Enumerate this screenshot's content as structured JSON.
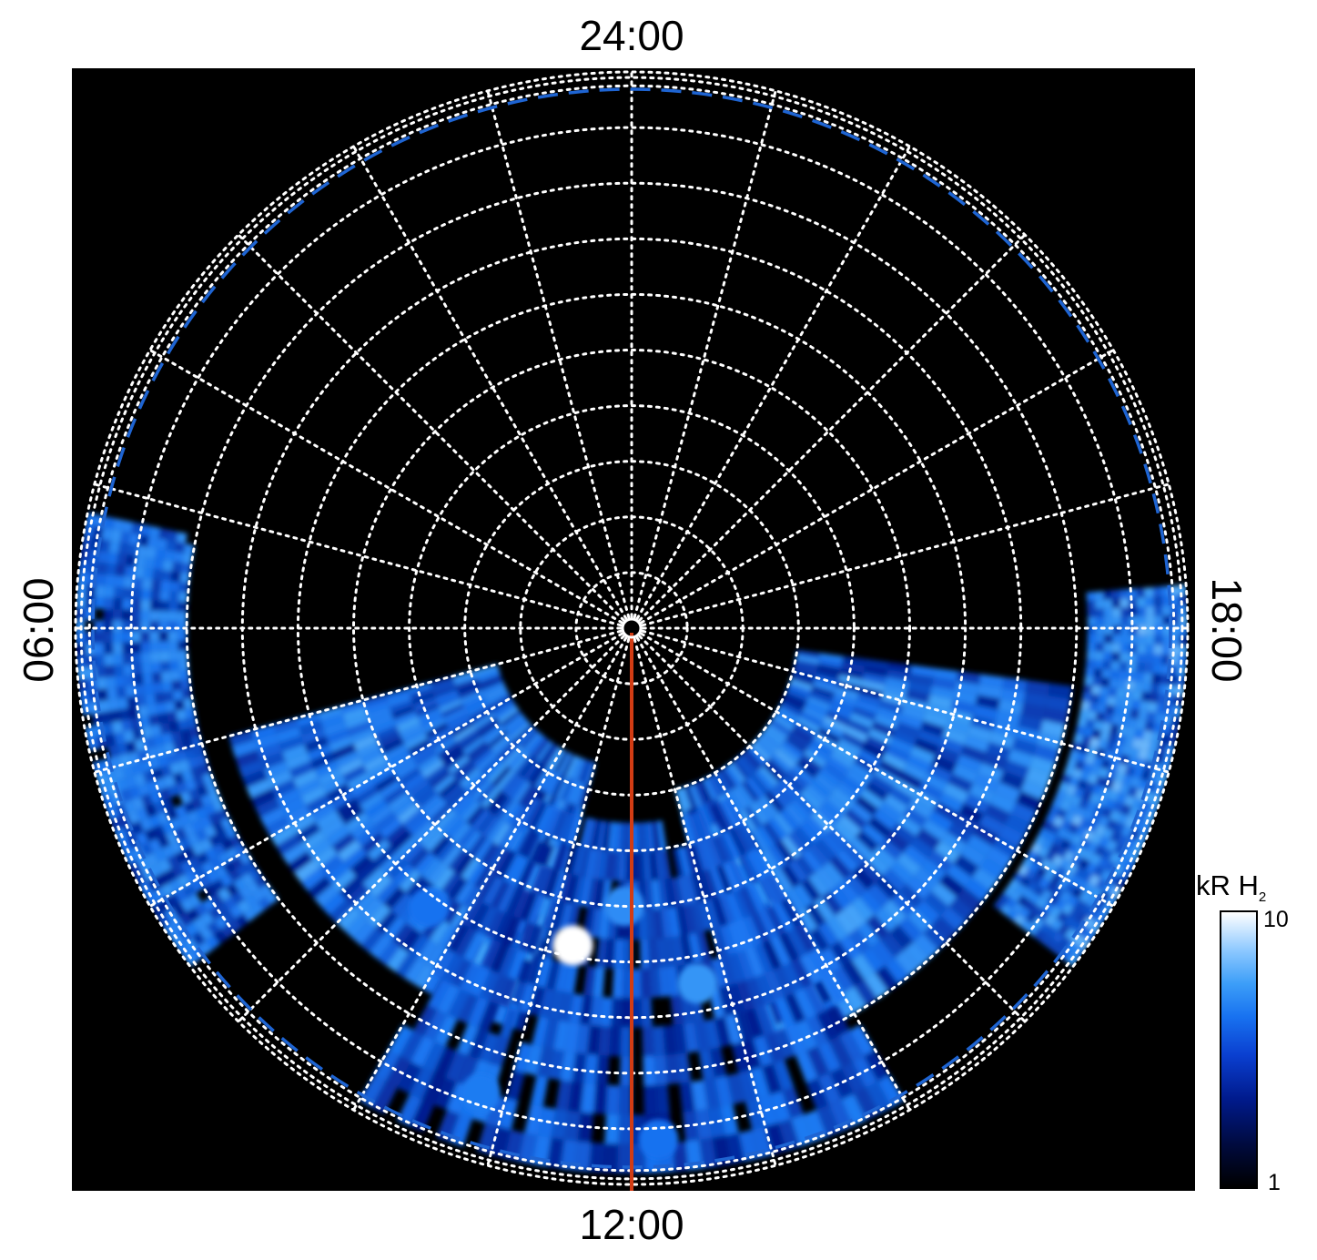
{
  "chart_data": {
    "type": "heatmap",
    "projection": "polar",
    "title": "",
    "local_time_labels": {
      "top": "24:00",
      "bottom": "12:00",
      "left": "06:00",
      "right": "18:00"
    },
    "colorbar": {
      "label": "kR H",
      "label_subscript": "2",
      "min_label": "1",
      "max_label": "10",
      "range": [
        1,
        10
      ],
      "scale": "log",
      "colors": [
        "#000000",
        "#001a8c",
        "#1872f0",
        "#8cc8ff",
        "#ffffff"
      ]
    },
    "grid": {
      "meridian_spacing_hours": 1,
      "latitude_circles": 10,
      "style": "dotted",
      "color": "#ffffff"
    },
    "reference_oval": {
      "style": "dashed",
      "color": "#1e64d2"
    },
    "meridian_line": {
      "local_time": "12:00",
      "color": "#d23c14"
    },
    "emission_regions": [
      {
        "id": "dawn-band",
        "lt_start": 5.2,
        "lt_end": 8.5,
        "r_inner": 0.8,
        "r_outer": 1.0,
        "brightness": 0.7
      },
      {
        "id": "prenoon-band",
        "lt_start": 7.0,
        "lt_end": 11.0,
        "r_inner": 0.25,
        "r_outer": 0.75,
        "brightness": 0.75
      },
      {
        "id": "afternoon-band",
        "lt_start": 13.0,
        "lt_end": 17.5,
        "r_inner": 0.3,
        "r_outer": 0.8,
        "brightness": 0.75
      },
      {
        "id": "dusk-band",
        "lt_start": 15.5,
        "lt_end": 18.3,
        "r_inner": 0.82,
        "r_outer": 1.0,
        "brightness": 0.8
      },
      {
        "id": "noon-patches",
        "lt_start": 10.0,
        "lt_end": 14.0,
        "r_inner": 0.35,
        "r_outer": 0.98,
        "brightness": 0.55
      }
    ],
    "bright_spots": [
      {
        "lt": 11.3,
        "r": 0.58,
        "brightness": 1.0
      },
      {
        "lt": 11.9,
        "r": 0.5,
        "brightness": 0.7
      },
      {
        "lt": 12.7,
        "r": 0.65,
        "brightness": 0.75
      },
      {
        "lt": 9.6,
        "r": 0.62,
        "brightness": 0.55
      },
      {
        "lt": 10.8,
        "r": 0.88,
        "brightness": 0.6
      },
      {
        "lt": 12.2,
        "r": 0.92,
        "brightness": 0.55
      }
    ]
  }
}
